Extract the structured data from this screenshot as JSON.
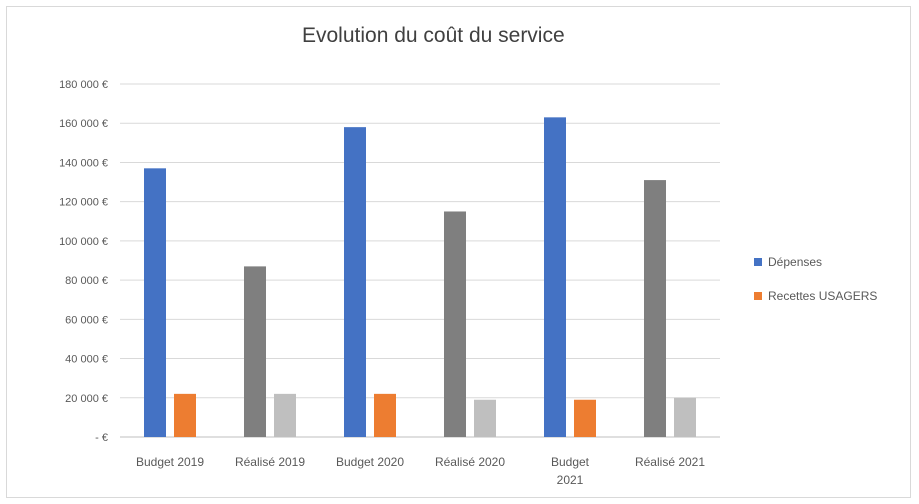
{
  "chart_data": {
    "type": "bar",
    "title": "Evolution du coût du service",
    "categories": [
      [
        "Budget 2019"
      ],
      [
        "Réalisé 2019"
      ],
      [
        "Budget 2020"
      ],
      [
        "Réalisé 2020"
      ],
      [
        "Budget",
        "2021"
      ],
      [
        "Réalisé 2021"
      ]
    ],
    "series": [
      {
        "name": "Dépenses",
        "values": [
          137000,
          87000,
          158000,
          115000,
          163000,
          131000
        ]
      },
      {
        "name": "Recettes USAGERS",
        "values": [
          22000,
          22000,
          22000,
          19000,
          19000,
          20000
        ]
      }
    ],
    "bar_colors": {
      "budget_depenses": "#4472c4",
      "budget_recettes": "#ed7d31",
      "realise_depenses": "#7f7f7f",
      "realise_recettes": "#bfbfbf"
    },
    "ylim": [
      0,
      180000
    ],
    "y_ticks": [
      0,
      20000,
      40000,
      60000,
      80000,
      100000,
      120000,
      140000,
      160000,
      180000
    ],
    "y_tick_labels": [
      "- €",
      "20 000 €",
      "40 000 €",
      "60 000 €",
      "80 000 €",
      "100 000 €",
      "120 000 €",
      "140 000 €",
      "160 000 €",
      "180 000 €"
    ],
    "grid": true,
    "legend_position": "right"
  }
}
